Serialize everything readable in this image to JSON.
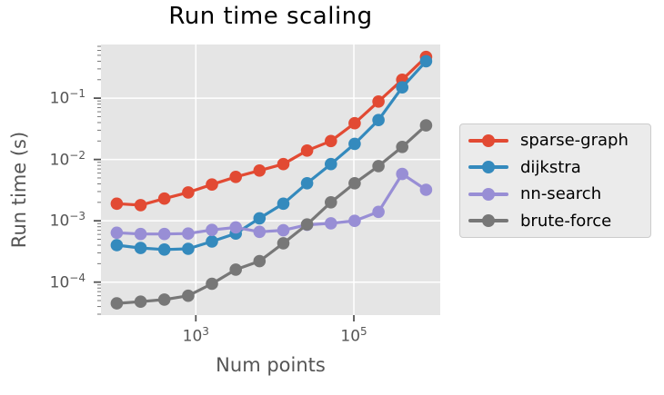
{
  "title": "Run time scaling",
  "axes": {
    "xlabel": "Num points",
    "ylabel": "Run time (s)"
  },
  "colors": {
    "panel_bg": "#E5E5E5",
    "grid": "#FFFFFF",
    "tick": "#555555",
    "minor_tick": "#777777",
    "legend_bg": "#EBEBEB",
    "legend_border": "#CCCCCC"
  },
  "chart_data": {
    "type": "line",
    "xscale": "log",
    "yscale": "log",
    "x": [
      100,
      200,
      400,
      800,
      1600,
      3200,
      6400,
      12800,
      25600,
      51200,
      102400,
      204800,
      409600,
      819200
    ],
    "xlim": [
      63,
      1240000
    ],
    "ylim": [
      2.9e-05,
      0.75
    ],
    "x_tick_exponents": [
      3,
      5
    ],
    "y_tick_exponents": [
      -1,
      -2,
      -3,
      -4
    ],
    "grid": true,
    "legend_position": "right of axes",
    "series": [
      {
        "name": "sparse-graph",
        "color": "#E24A33",
        "values": [
          0.0019,
          0.0018,
          0.0023,
          0.0029,
          0.0039,
          0.0052,
          0.0066,
          0.0084,
          0.014,
          0.02,
          0.039,
          0.088,
          0.2,
          0.47
        ]
      },
      {
        "name": "dijkstra",
        "color": "#348ABD",
        "values": [
          0.0004,
          0.00036,
          0.00034,
          0.00035,
          0.00046,
          0.00062,
          0.0011,
          0.0019,
          0.0041,
          0.0084,
          0.018,
          0.044,
          0.15,
          0.4
        ]
      },
      {
        "name": "nn-search",
        "color": "#988ED5",
        "values": [
          0.00064,
          0.00061,
          0.00061,
          0.00062,
          0.00071,
          0.00078,
          0.00066,
          0.0007,
          0.00086,
          0.00091,
          0.001,
          0.0014,
          0.0058,
          0.0032
        ]
      },
      {
        "name": "brute-force",
        "color": "#777777",
        "values": [
          4.5e-05,
          4.8e-05,
          5.2e-05,
          6e-05,
          9.4e-05,
          0.00016,
          0.00022,
          0.00043,
          0.00087,
          0.002,
          0.0041,
          0.0078,
          0.016,
          0.036
        ]
      }
    ]
  }
}
